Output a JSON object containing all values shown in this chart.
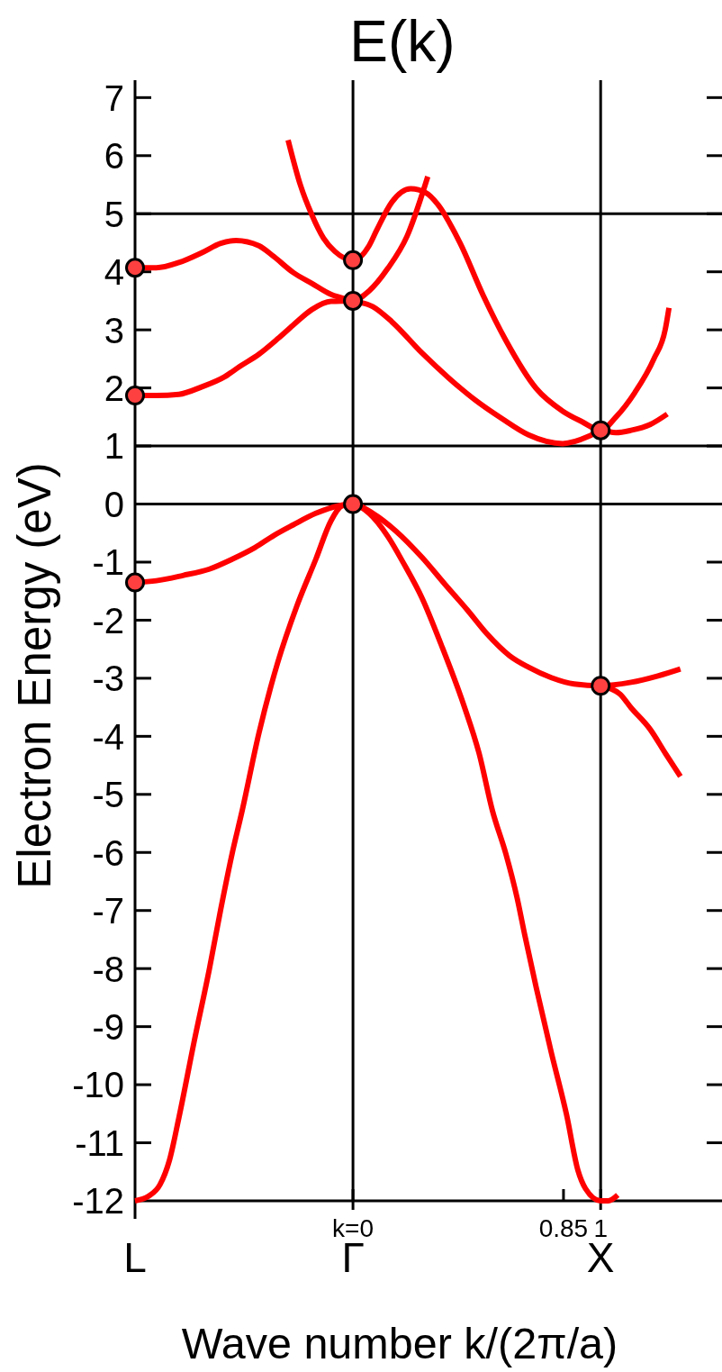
{
  "chart_data": {
    "type": "line",
    "title": "E(k)",
    "xlabel": "Wave number k/(2π/a)",
    "ylabel": "Electron Energy (eV)",
    "xlim": [
      -0.88,
      1.49
    ],
    "ylim": [
      -12,
      7.3
    ],
    "xticks": [
      {
        "value": 0,
        "label": "k=0"
      },
      0.85,
      1
    ],
    "yticks": [
      7,
      6,
      5,
      4,
      3,
      2,
      1,
      0,
      -1,
      -2,
      -3,
      -4,
      -5,
      -6,
      -7,
      -8,
      -9,
      -10,
      -11,
      -12
    ],
    "ref_lines": [
      {
        "axis": "y",
        "value": 5
      },
      {
        "axis": "y",
        "value": 1
      },
      {
        "axis": "y",
        "value": 0
      },
      {
        "axis": "x",
        "value": 0,
        "label": "Γ"
      },
      {
        "axis": "x",
        "value": 1,
        "label": "X"
      }
    ],
    "annotations": [
      {
        "text": "L",
        "x": -0.88,
        "y": -12
      }
    ],
    "series": [
      {
        "color": "#ff0000",
        "x": [
          -0.88,
          -0.794,
          -0.703,
          -0.61,
          -0.534,
          -0.472,
          -0.38,
          -0.319,
          -0.242,
          -0.166,
          -0.089,
          0,
          0.08,
          0.157,
          0.279,
          0.387,
          0.494,
          0.602,
          0.709,
          0.847,
          0.954,
          1,
          1.062,
          1.123,
          1.2,
          1.269
        ],
        "values": [
          4.07,
          4.07,
          4.16,
          4.33,
          4.49,
          4.54,
          4.45,
          4.26,
          3.99,
          3.8,
          3.61,
          3.5,
          3.4,
          3.14,
          2.6,
          2.17,
          1.79,
          1.47,
          1.19,
          1.04,
          1.17,
          1.27,
          1.23,
          1.27,
          1.37,
          1.55
        ]
      },
      {
        "color": "#ff0000",
        "x": [
          -0.88,
          -0.794,
          -0.703,
          -0.61,
          -0.519,
          -0.457,
          -0.38,
          -0.303,
          -0.242,
          -0.166,
          -0.089,
          0,
          0.065,
          0.141,
          0.218,
          0.302
        ],
        "values": [
          1.87,
          1.87,
          1.89,
          2.02,
          2.19,
          2.37,
          2.58,
          2.85,
          3.08,
          3.35,
          3.49,
          3.5,
          3.67,
          4.06,
          4.61,
          5.64
        ]
      },
      {
        "color": "#ff0000",
        "x": [
          -0.262,
          -0.212,
          -0.166,
          -0.119,
          -0.073,
          0,
          0.065,
          0.095,
          0.157,
          0.233,
          0.295,
          0.341,
          0.433,
          0.525,
          0.617,
          0.74,
          0.847,
          0.924,
          1,
          1.062,
          1.138,
          1.215,
          1.261,
          1.276
        ],
        "values": [
          6.27,
          5.49,
          4.98,
          4.58,
          4.35,
          4.2,
          4.45,
          4.71,
          5.2,
          5.43,
          5.36,
          5.17,
          4.49,
          3.6,
          2.82,
          1.99,
          1.6,
          1.42,
          1.27,
          1.5,
          1.92,
          2.5,
          3.01,
          3.38
        ]
      },
      {
        "color": "#ff0000",
        "x": [
          -0.88,
          -0.794,
          -0.687,
          -0.58,
          -0.488,
          -0.396,
          -0.319,
          -0.242,
          -0.15,
          -0.058,
          0,
          0.08,
          0.172,
          0.279,
          0.371,
          0.463,
          0.54,
          0.632,
          0.709,
          0.801,
          0.893,
          1,
          1.123,
          1.231,
          1.322
        ],
        "values": [
          -1.35,
          -1.32,
          -1.23,
          -1.12,
          -0.95,
          -0.75,
          -0.54,
          -0.36,
          -0.16,
          -0.03,
          0,
          -0.16,
          -0.46,
          -0.92,
          -1.38,
          -1.83,
          -2.23,
          -2.61,
          -2.81,
          -2.99,
          -3.1,
          -3.13,
          -3.07,
          -2.96,
          -2.84
        ]
      },
      {
        "color": "#ff0000",
        "x": [
          1,
          1.077,
          1.123,
          1.2,
          1.261,
          1.322
        ],
        "values": [
          -3.13,
          -3.27,
          -3.51,
          -3.88,
          -4.29,
          -4.69
        ]
      },
      {
        "color": "#ff0000",
        "x": [
          -0.88,
          -0.825,
          -0.779,
          -0.741,
          -0.703,
          -0.641,
          -0.58,
          -0.534,
          -0.488,
          -0.449,
          -0.38,
          -0.304,
          -0.227,
          -0.15,
          -0.089,
          -0.043,
          0,
          0.065,
          0.141,
          0.203,
          0.279,
          0.356,
          0.448,
          0.509,
          0.563,
          0.617,
          0.663,
          0.694,
          0.74,
          0.801,
          0.862,
          0.908,
          0.939,
          1,
          1.031,
          1.069
        ],
        "values": [
          -12,
          -11.92,
          -11.72,
          -11.3,
          -10.57,
          -9.25,
          -8.01,
          -6.98,
          -6.02,
          -5.31,
          -3.95,
          -2.73,
          -1.76,
          -0.95,
          -0.29,
          -0.03,
          0,
          -0.16,
          -0.56,
          -1.01,
          -1.62,
          -2.42,
          -3.47,
          -4.29,
          -5.28,
          -6.02,
          -6.79,
          -7.43,
          -8.33,
          -9.45,
          -10.51,
          -11.47,
          -11.79,
          -12,
          -12,
          -11.9
        ]
      },
      {
        "type": "scatter",
        "color": "#ff4040",
        "marker": "circle",
        "x": [
          -0.88,
          -0.88,
          -0.88,
          0,
          0,
          0,
          1,
          1
        ],
        "values": [
          4.07,
          1.87,
          -1.35,
          4.2,
          3.5,
          0,
          1.27,
          -3.13
        ]
      }
    ]
  }
}
